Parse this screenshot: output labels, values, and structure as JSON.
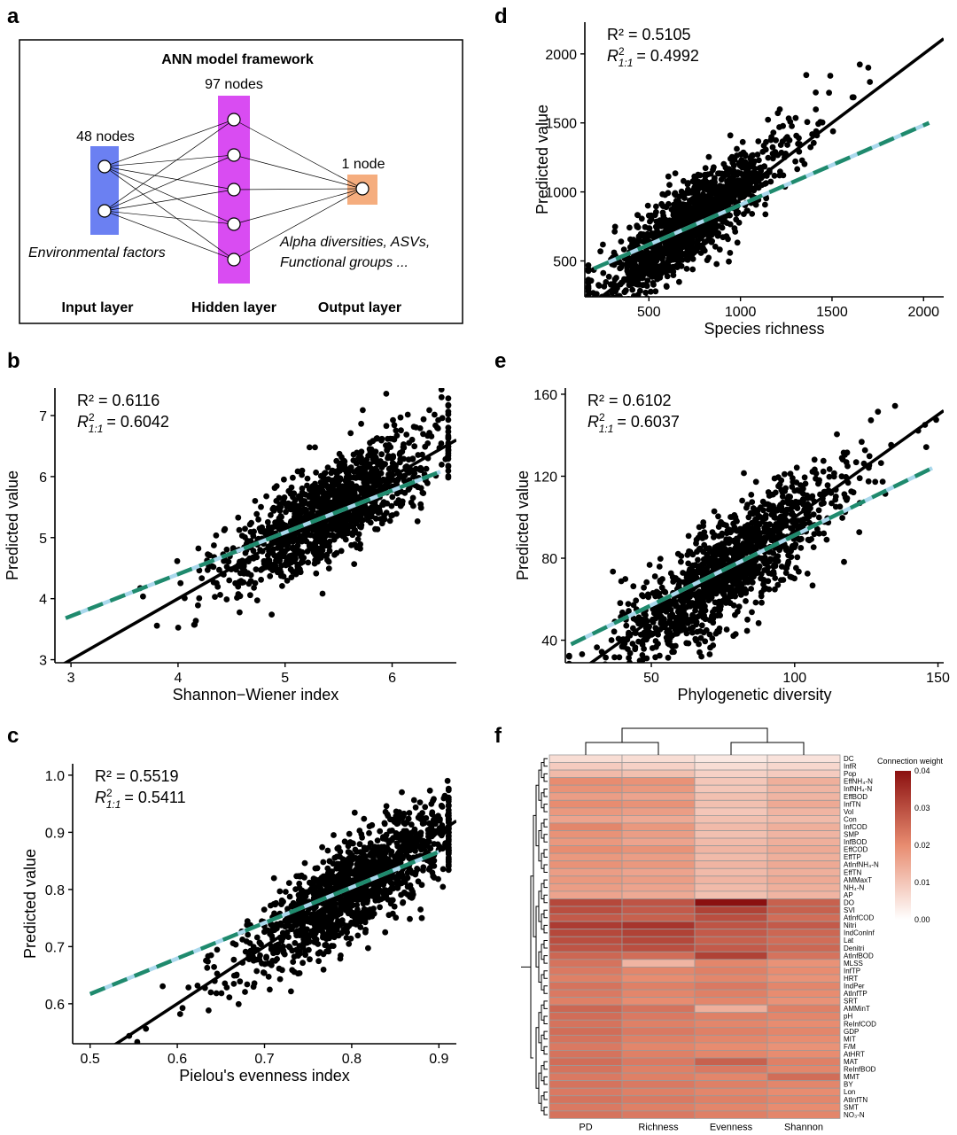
{
  "panel_letters": [
    "a",
    "b",
    "c",
    "d",
    "e",
    "f"
  ],
  "colors": {
    "input_layer": "#6b80f2",
    "hidden_layer": "#d94cf2",
    "output_layer": "#f5ad7e",
    "point": "#000000",
    "identity_line": "#000000",
    "fit_line_dash": "#1f8a6d",
    "fit_line_band": "#a9d8ec",
    "heat_low": "#ffffff",
    "heat_high": "#8b1010",
    "heat_grid": "#9a9a9a"
  },
  "framework": {
    "title": "ANN model framework",
    "input_nodes_label": "48 nodes",
    "hidden_nodes_label": "97 nodes",
    "output_nodes_label": "1 node",
    "input_caption": "Environmental factors",
    "output_caption_line1": "Alpha diversities, ASVs,",
    "output_caption_line2": "Functional groups ...",
    "input_layer_label": "Input layer",
    "hidden_layer_label": "Hidden layer",
    "output_layer_label": "Output layer",
    "input_node_count_drawn": 2,
    "hidden_node_count_drawn": 5,
    "output_node_count_drawn": 1
  },
  "chart_data": [
    {
      "panel": "b",
      "type": "scatter",
      "xlabel": "Shannon−Wiener index",
      "ylabel": "Predicted value",
      "xlim": [
        2.85,
        6.6
      ],
      "ylim": [
        2.95,
        7.45
      ],
      "xticks": [
        3,
        4,
        5,
        6
      ],
      "yticks": [
        3,
        4,
        5,
        6,
        7
      ],
      "r2_label": "R² = 0.6116",
      "r2_11_value": "= 0.6042",
      "fit_line": {
        "x": [
          2.95,
          6.45
        ],
        "y": [
          3.68,
          6.08
        ]
      },
      "n_points": 1400,
      "point_center": [
        5.4,
        5.45
      ],
      "point_spread": 0.42,
      "residual_sd": 0.38,
      "seed": 11
    },
    {
      "panel": "c",
      "type": "scatter",
      "xlabel": "Pielou's evenness index",
      "ylabel": "Predicted value",
      "xlim": [
        0.48,
        0.92
      ],
      "ylim": [
        0.53,
        1.02
      ],
      "xticks": [
        0.5,
        0.6,
        0.7,
        0.8,
        0.9
      ],
      "yticks": [
        0.6,
        0.7,
        0.8,
        0.9,
        1.0
      ],
      "r2_label": "R² = 0.5519",
      "r2_11_value": "= 0.5411",
      "fit_line": {
        "x": [
          0.5,
          0.9
        ],
        "y": [
          0.617,
          0.866
        ]
      },
      "n_points": 1400,
      "point_center": [
        0.8,
        0.8
      ],
      "point_spread": 0.055,
      "residual_sd": 0.04,
      "seed": 23
    },
    {
      "panel": "d",
      "type": "scatter",
      "xlabel": "Species richness",
      "ylabel": "Predicted value",
      "xlim": [
        150,
        2110
      ],
      "ylim": [
        240,
        2230
      ],
      "xticks": [
        500,
        1000,
        1500,
        2000
      ],
      "yticks": [
        500,
        1000,
        1500,
        2000
      ],
      "r2_label": "R² = 0.5105",
      "r2_11_value": "= 0.4992",
      "fit_line": {
        "x": [
          200,
          2030
        ],
        "y": [
          445,
          1500
        ]
      },
      "n_points": 1400,
      "point_center": [
        720,
        760
      ],
      "point_spread": 230,
      "residual_sd": 150,
      "seed": 37
    },
    {
      "panel": "e",
      "type": "scatter",
      "xlabel": "Phylogenetic diversity",
      "ylabel": "Predicted value",
      "xlim": [
        20,
        152
      ],
      "ylim": [
        29,
        163
      ],
      "xticks": [
        50,
        100,
        150
      ],
      "yticks": [
        40,
        80,
        120,
        160
      ],
      "r2_label": "R² = 0.6102",
      "r2_11_value": "= 0.6037",
      "fit_line": {
        "x": [
          22,
          148
        ],
        "y": [
          38,
          124
        ]
      },
      "n_points": 1400,
      "point_center": [
        76,
        74
      ],
      "point_spread": 17,
      "residual_sd": 12,
      "seed": 53
    },
    {
      "panel": "f",
      "type": "heatmap",
      "legend_title": "Connection weight",
      "legend_ticks": [
        "0.04",
        "0.03",
        "0.02",
        "0.01",
        "0.00"
      ],
      "vmax": 0.04,
      "columns": [
        "PD",
        "Richness",
        "Evenness",
        "Shannon"
      ],
      "rows": [
        "DC",
        "InfR",
        "Pop",
        "EffNH₄-N",
        "InfNH₄-N",
        "EffBOD",
        "InfTN",
        "Vol",
        "Con",
        "InfCOD",
        "SMP",
        "InfBOD",
        "EffCOD",
        "EffTP",
        "AtInfNH₄-N",
        "EffTN",
        "AMMaxT",
        "NH₄-N",
        "AP",
        "DO",
        "SVI",
        "AtInfCOD",
        "Nitri",
        "IndConInf",
        "Lat",
        "Denitri",
        "AtInfBOD",
        "MLSS",
        "InfTP",
        "HRT",
        "IndPer",
        "AtInfTP",
        "SRT",
        "AMMinT",
        "pH",
        "ReInfCOD",
        "GDP",
        "MIT",
        "F/M",
        "AtHRT",
        "MAT",
        "ReInfBOD",
        "MMT",
        "BY",
        "Lon",
        "AtInfTN",
        "SMT",
        "NO₃-N"
      ],
      "values": [
        [
          0.006,
          0.006,
          0.004,
          0.005
        ],
        [
          0.009,
          0.008,
          0.006,
          0.007
        ],
        [
          0.012,
          0.011,
          0.008,
          0.009
        ],
        [
          0.02,
          0.019,
          0.01,
          0.014
        ],
        [
          0.019,
          0.018,
          0.01,
          0.013
        ],
        [
          0.017,
          0.016,
          0.011,
          0.013
        ],
        [
          0.02,
          0.019,
          0.011,
          0.015
        ],
        [
          0.018,
          0.017,
          0.01,
          0.013
        ],
        [
          0.016,
          0.015,
          0.011,
          0.012
        ],
        [
          0.021,
          0.018,
          0.012,
          0.014
        ],
        [
          0.019,
          0.017,
          0.011,
          0.013
        ],
        [
          0.018,
          0.016,
          0.012,
          0.014
        ],
        [
          0.02,
          0.019,
          0.013,
          0.015
        ],
        [
          0.018,
          0.017,
          0.012,
          0.014
        ],
        [
          0.019,
          0.018,
          0.013,
          0.015
        ],
        [
          0.017,
          0.016,
          0.012,
          0.014
        ],
        [
          0.018,
          0.017,
          0.013,
          0.015
        ],
        [
          0.017,
          0.016,
          0.012,
          0.014
        ],
        [
          0.016,
          0.015,
          0.011,
          0.013
        ],
        [
          0.031,
          0.029,
          0.04,
          0.027
        ],
        [
          0.03,
          0.028,
          0.032,
          0.027
        ],
        [
          0.028,
          0.027,
          0.03,
          0.025
        ],
        [
          0.033,
          0.034,
          0.029,
          0.028
        ],
        [
          0.031,
          0.032,
          0.028,
          0.026
        ],
        [
          0.03,
          0.031,
          0.027,
          0.025
        ],
        [
          0.029,
          0.03,
          0.028,
          0.026
        ],
        [
          0.026,
          0.025,
          0.032,
          0.024
        ],
        [
          0.024,
          0.013,
          0.021,
          0.019
        ],
        [
          0.023,
          0.021,
          0.022,
          0.02
        ],
        [
          0.022,
          0.02,
          0.021,
          0.019
        ],
        [
          0.024,
          0.022,
          0.023,
          0.021
        ],
        [
          0.023,
          0.021,
          0.022,
          0.02
        ],
        [
          0.022,
          0.02,
          0.021,
          0.019
        ],
        [
          0.026,
          0.024,
          0.014,
          0.022
        ],
        [
          0.025,
          0.023,
          0.022,
          0.021
        ],
        [
          0.024,
          0.022,
          0.021,
          0.02
        ],
        [
          0.025,
          0.023,
          0.022,
          0.021
        ],
        [
          0.024,
          0.022,
          0.021,
          0.02
        ],
        [
          0.023,
          0.021,
          0.02,
          0.019
        ],
        [
          0.024,
          0.022,
          0.021,
          0.02
        ],
        [
          0.025,
          0.023,
          0.027,
          0.022
        ],
        [
          0.024,
          0.022,
          0.023,
          0.021
        ],
        [
          0.023,
          0.022,
          0.021,
          0.025
        ],
        [
          0.024,
          0.023,
          0.022,
          0.021
        ],
        [
          0.023,
          0.022,
          0.021,
          0.02
        ],
        [
          0.024,
          0.023,
          0.022,
          0.021
        ],
        [
          0.023,
          0.022,
          0.021,
          0.02
        ],
        [
          0.024,
          0.023,
          0.022,
          0.021
        ]
      ]
    }
  ]
}
